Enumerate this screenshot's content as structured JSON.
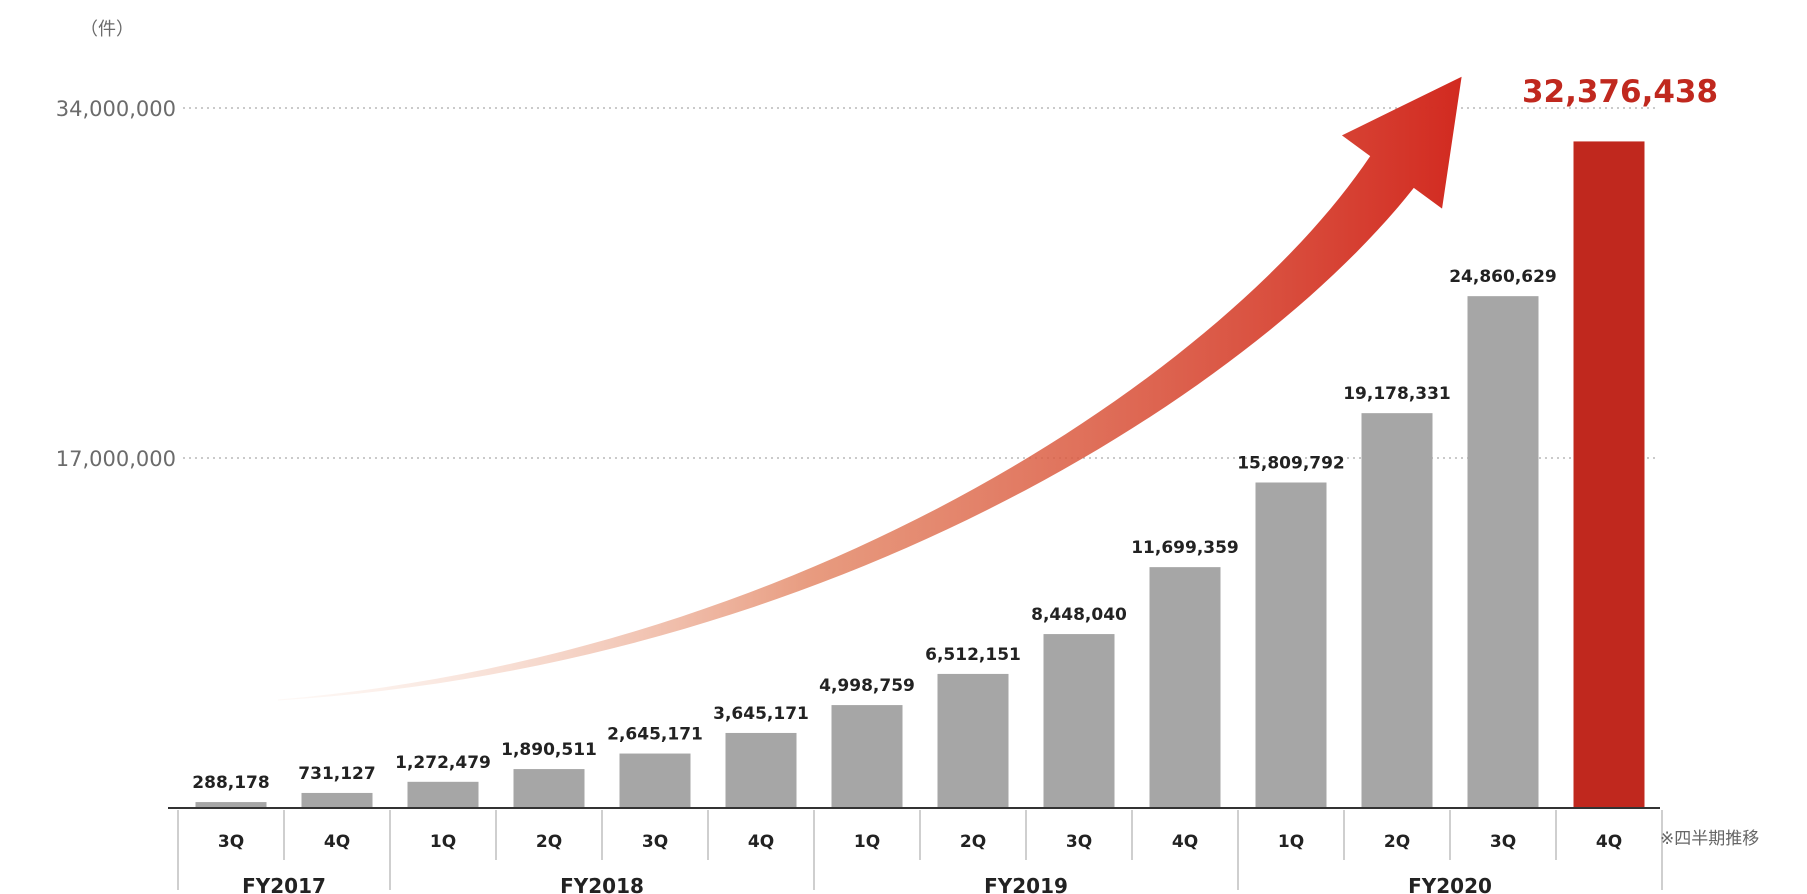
{
  "chart_data": {
    "type": "bar",
    "unit": "（件）",
    "note": "※四半期推移",
    "ylim": [
      0,
      34000000
    ],
    "yticks": [
      17000000,
      34000000
    ],
    "ytick_labels": [
      "17,000,000",
      "34,000,000"
    ],
    "grid": "dotted horizontal at y ticks",
    "categories": [
      "3Q",
      "4Q",
      "1Q",
      "2Q",
      "3Q",
      "4Q",
      "1Q",
      "2Q",
      "3Q",
      "4Q",
      "1Q",
      "2Q",
      "3Q",
      "4Q"
    ],
    "groups": [
      {
        "label": "FY2017",
        "count": 2
      },
      {
        "label": "FY2018",
        "count": 4
      },
      {
        "label": "FY2019",
        "count": 4
      },
      {
        "label": "FY2020",
        "count": 4
      }
    ],
    "values": [
      288178,
      731127,
      1272479,
      1890511,
      2645171,
      3645171,
      4998759,
      6512151,
      8448040,
      11699359,
      15809792,
      19178331,
      24860629,
      32376438
    ],
    "value_labels": [
      "288,178",
      "731,127",
      "1,272,479",
      "1,890,511",
      "2,645,171",
      "3,645,171",
      "4,998,759",
      "6,512,151",
      "8,448,040",
      "11,699,359",
      "15,809,792",
      "19,178,331",
      "24,860,629",
      "32,376,438"
    ],
    "highlight_index": 13,
    "colors": {
      "bar": "#a6a6a6",
      "highlight": "#c0281e",
      "arrow_start": "#f6d6c6",
      "arrow_end": "#d22a20",
      "grid": "#b8b8b8",
      "axis": "#333333",
      "divider": "#bfbfbf"
    }
  }
}
